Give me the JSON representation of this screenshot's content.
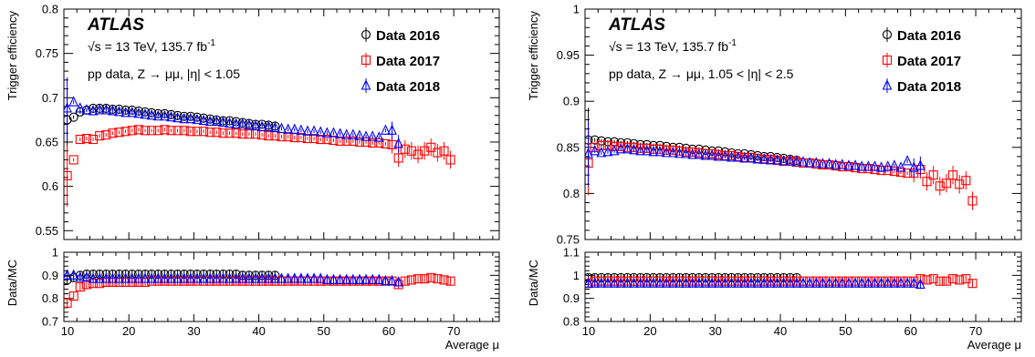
{
  "chart_data": [
    {
      "type": "scatter",
      "label_atlas": "ATLAS",
      "energy_prefix": "√s",
      "energy_text": " = 13 TeV, 135.7 fb",
      "energy_sup": "-1",
      "selection": "pp data, Z → μμ, |η| < 1.05",
      "ylabel": "Trigger efficiency",
      "ratio_ylabel": "Data/MC",
      "xlabel": "Average μ",
      "xlim": [
        10,
        77
      ],
      "ylim": [
        0.54,
        0.8
      ],
      "ratio_ylim": [
        0.7,
        1.0
      ],
      "x_ticks": [
        "10",
        "20",
        "30",
        "40",
        "50",
        "60",
        "70"
      ],
      "y_ticks": [
        "0.55",
        "0.6",
        "0.65",
        "0.7",
        "0.75",
        "0.8"
      ],
      "ratio_y_ticks": [
        "0.7",
        "0.8",
        "0.9",
        "1"
      ],
      "legend_position": "top-right",
      "series": [
        {
          "name": "Data 2016",
          "marker": "circle",
          "color": "#000000",
          "x": [
            10.5,
            11.5,
            12.5,
            13.5,
            14.5,
            15.5,
            16.5,
            17.5,
            18.5,
            19.5,
            20.5,
            21.5,
            22.5,
            23.5,
            24.5,
            25.5,
            26.5,
            27.5,
            28.5,
            29.5,
            30.5,
            31.5,
            32.5,
            33.5,
            34.5,
            35.5,
            36.5,
            37.5,
            38.5,
            39.5,
            40.5,
            41.5,
            42.5
          ],
          "y": [
            0.675,
            0.678,
            0.684,
            0.686,
            0.688,
            0.688,
            0.688,
            0.687,
            0.687,
            0.686,
            0.686,
            0.685,
            0.684,
            0.683,
            0.682,
            0.682,
            0.681,
            0.68,
            0.679,
            0.679,
            0.678,
            0.677,
            0.676,
            0.675,
            0.674,
            0.674,
            0.673,
            0.672,
            0.671,
            0.67,
            0.67,
            0.669,
            0.668
          ],
          "ratio": [
            0.88,
            0.89,
            0.9,
            0.905,
            0.905,
            0.905,
            0.905,
            0.905,
            0.905,
            0.905,
            0.905,
            0.905,
            0.905,
            0.905,
            0.905,
            0.905,
            0.905,
            0.905,
            0.905,
            0.905,
            0.905,
            0.905,
            0.905,
            0.905,
            0.905,
            0.905,
            0.905,
            0.9,
            0.9,
            0.9,
            0.9,
            0.9,
            0.9
          ]
        },
        {
          "name": "Data 2017",
          "marker": "square",
          "color": "#ff0000",
          "x": [
            10.5,
            11.5,
            12.5,
            13.5,
            14.5,
            15.5,
            16.5,
            17.5,
            18.5,
            19.5,
            20.5,
            21.5,
            22.5,
            23.5,
            24.5,
            25.5,
            26.5,
            27.5,
            28.5,
            29.5,
            30.5,
            31.5,
            32.5,
            33.5,
            34.5,
            35.5,
            36.5,
            37.5,
            38.5,
            39.5,
            40.5,
            41.5,
            42.5,
            43.5,
            44.5,
            45.5,
            46.5,
            47.5,
            48.5,
            49.5,
            50.5,
            51.5,
            52.5,
            53.5,
            54.5,
            55.5,
            56.5,
            57.5,
            58.5,
            59.5,
            60.5,
            61.5,
            62.5,
            63.5,
            64.5,
            65.5,
            66.5,
            67.5,
            68.5,
            69.5
          ],
          "y": [
            0.612,
            0.63,
            0.653,
            0.654,
            0.653,
            0.657,
            0.658,
            0.66,
            0.661,
            0.662,
            0.663,
            0.664,
            0.663,
            0.663,
            0.663,
            0.664,
            0.663,
            0.663,
            0.663,
            0.662,
            0.662,
            0.662,
            0.661,
            0.661,
            0.66,
            0.66,
            0.66,
            0.659,
            0.659,
            0.659,
            0.658,
            0.657,
            0.657,
            0.656,
            0.656,
            0.655,
            0.655,
            0.654,
            0.654,
            0.653,
            0.653,
            0.652,
            0.651,
            0.651,
            0.651,
            0.65,
            0.65,
            0.649,
            0.649,
            0.648,
            0.647,
            0.632,
            0.642,
            0.64,
            0.636,
            0.64,
            0.644,
            0.638,
            0.64,
            0.63
          ],
          "ratio": [
            0.78,
            0.81,
            0.85,
            0.86,
            0.865,
            0.865,
            0.87,
            0.87,
            0.87,
            0.87,
            0.87,
            0.87,
            0.87,
            0.875,
            0.875,
            0.875,
            0.875,
            0.875,
            0.875,
            0.875,
            0.875,
            0.875,
            0.875,
            0.875,
            0.875,
            0.875,
            0.875,
            0.875,
            0.875,
            0.875,
            0.875,
            0.875,
            0.875,
            0.875,
            0.875,
            0.875,
            0.875,
            0.875,
            0.875,
            0.875,
            0.875,
            0.875,
            0.875,
            0.875,
            0.875,
            0.875,
            0.875,
            0.875,
            0.875,
            0.875,
            0.875,
            0.86,
            0.875,
            0.88,
            0.885,
            0.885,
            0.89,
            0.885,
            0.88,
            0.875
          ]
        },
        {
          "name": "Data 2018",
          "marker": "triangle",
          "color": "#0000ff",
          "x": [
            10.5,
            11.5,
            12.5,
            13.5,
            14.5,
            15.5,
            16.5,
            17.5,
            18.5,
            19.5,
            20.5,
            21.5,
            22.5,
            23.5,
            24.5,
            25.5,
            26.5,
            27.5,
            28.5,
            29.5,
            30.5,
            31.5,
            32.5,
            33.5,
            34.5,
            35.5,
            36.5,
            37.5,
            38.5,
            39.5,
            40.5,
            41.5,
            42.5,
            43.5,
            44.5,
            45.5,
            46.5,
            47.5,
            48.5,
            49.5,
            50.5,
            51.5,
            52.5,
            53.5,
            54.5,
            55.5,
            56.5,
            57.5,
            58.5,
            59.5,
            60.5,
            61.5
          ],
          "y": [
            0.688,
            0.695,
            0.688,
            0.686,
            0.685,
            0.686,
            0.686,
            0.685,
            0.684,
            0.683,
            0.683,
            0.682,
            0.681,
            0.68,
            0.679,
            0.679,
            0.678,
            0.677,
            0.676,
            0.676,
            0.675,
            0.674,
            0.673,
            0.673,
            0.672,
            0.671,
            0.67,
            0.67,
            0.669,
            0.668,
            0.667,
            0.667,
            0.666,
            0.665,
            0.664,
            0.664,
            0.663,
            0.662,
            0.662,
            0.661,
            0.66,
            0.66,
            0.659,
            0.658,
            0.658,
            0.657,
            0.656,
            0.656,
            0.655,
            0.663,
            0.663,
            0.648
          ],
          "ratio": [
            0.9,
            0.9,
            0.89,
            0.89,
            0.885,
            0.885,
            0.885,
            0.885,
            0.885,
            0.885,
            0.885,
            0.885,
            0.885,
            0.885,
            0.885,
            0.885,
            0.885,
            0.885,
            0.885,
            0.885,
            0.885,
            0.885,
            0.885,
            0.885,
            0.885,
            0.885,
            0.885,
            0.885,
            0.885,
            0.885,
            0.885,
            0.885,
            0.885,
            0.885,
            0.885,
            0.885,
            0.885,
            0.885,
            0.885,
            0.885,
            0.88,
            0.88,
            0.88,
            0.88,
            0.88,
            0.88,
            0.88,
            0.88,
            0.88,
            0.875,
            0.875,
            0.87
          ]
        }
      ]
    },
    {
      "type": "scatter",
      "label_atlas": "ATLAS",
      "energy_prefix": "√s",
      "energy_text": " = 13 TeV, 135.7 fb",
      "energy_sup": "-1",
      "selection": "pp data, Z → μμ, 1.05 < |η| < 2.5",
      "ylabel": "Trigger efficiency",
      "ratio_ylabel": "Data/MC",
      "xlabel": "Average μ",
      "xlim": [
        10,
        77
      ],
      "ylim": [
        0.75,
        1.0
      ],
      "ratio_ylim": [
        0.8,
        1.1
      ],
      "x_ticks": [
        "10",
        "20",
        "30",
        "40",
        "50",
        "60",
        "70"
      ],
      "y_ticks": [
        "0.75",
        "0.8",
        "0.85",
        "0.9",
        "0.95",
        "1"
      ],
      "ratio_y_ticks": [
        "0.8",
        "0.9",
        "1",
        "1.1"
      ],
      "legend_position": "top-right",
      "series": [
        {
          "name": "Data 2016",
          "marker": "circle",
          "color": "#000000",
          "x": [
            10.5,
            11.5,
            12.5,
            13.5,
            14.5,
            15.5,
            16.5,
            17.5,
            18.5,
            19.5,
            20.5,
            21.5,
            22.5,
            23.5,
            24.5,
            25.5,
            26.5,
            27.5,
            28.5,
            29.5,
            30.5,
            31.5,
            32.5,
            33.5,
            34.5,
            35.5,
            36.5,
            37.5,
            38.5,
            39.5,
            40.5,
            41.5,
            42.5
          ],
          "y": [
            0.858,
            0.858,
            0.857,
            0.856,
            0.856,
            0.855,
            0.855,
            0.854,
            0.853,
            0.853,
            0.852,
            0.852,
            0.851,
            0.85,
            0.85,
            0.849,
            0.848,
            0.848,
            0.847,
            0.846,
            0.846,
            0.845,
            0.844,
            0.843,
            0.843,
            0.842,
            0.841,
            0.84,
            0.84,
            0.839,
            0.838,
            0.837,
            0.836
          ],
          "ratio": [
            0.99,
            0.99,
            0.99,
            0.99,
            0.99,
            0.99,
            0.99,
            0.99,
            0.99,
            0.99,
            0.99,
            0.99,
            0.99,
            0.99,
            0.99,
            0.99,
            0.99,
            0.99,
            0.99,
            0.99,
            0.99,
            0.99,
            0.99,
            0.99,
            0.99,
            0.99,
            0.99,
            0.99,
            0.99,
            0.99,
            0.99,
            0.99,
            0.99
          ]
        },
        {
          "name": "Data 2017",
          "marker": "square",
          "color": "#ff0000",
          "x": [
            10.5,
            11.5,
            12.5,
            13.5,
            14.5,
            15.5,
            16.5,
            17.5,
            18.5,
            19.5,
            20.5,
            21.5,
            22.5,
            23.5,
            24.5,
            25.5,
            26.5,
            27.5,
            28.5,
            29.5,
            30.5,
            31.5,
            32.5,
            33.5,
            34.5,
            35.5,
            36.5,
            37.5,
            38.5,
            39.5,
            40.5,
            41.5,
            42.5,
            43.5,
            44.5,
            45.5,
            46.5,
            47.5,
            48.5,
            49.5,
            50.5,
            51.5,
            52.5,
            53.5,
            54.5,
            55.5,
            56.5,
            57.5,
            58.5,
            59.5,
            60.5,
            61.5,
            62.5,
            63.5,
            64.5,
            65.5,
            66.5,
            67.5,
            68.5,
            69.5
          ],
          "y": [
            0.833,
            0.85,
            0.852,
            0.852,
            0.851,
            0.851,
            0.85,
            0.85,
            0.849,
            0.849,
            0.848,
            0.848,
            0.847,
            0.847,
            0.846,
            0.845,
            0.845,
            0.844,
            0.843,
            0.843,
            0.842,
            0.841,
            0.841,
            0.84,
            0.839,
            0.839,
            0.838,
            0.837,
            0.837,
            0.836,
            0.835,
            0.835,
            0.834,
            0.833,
            0.833,
            0.832,
            0.831,
            0.831,
            0.83,
            0.829,
            0.829,
            0.828,
            0.827,
            0.827,
            0.826,
            0.825,
            0.825,
            0.824,
            0.823,
            0.822,
            0.822,
            0.826,
            0.813,
            0.82,
            0.808,
            0.811,
            0.82,
            0.81,
            0.814,
            0.792
          ],
          "ratio": [
            0.965,
            0.975,
            0.975,
            0.975,
            0.975,
            0.975,
            0.975,
            0.975,
            0.975,
            0.975,
            0.975,
            0.975,
            0.975,
            0.975,
            0.975,
            0.975,
            0.975,
            0.975,
            0.975,
            0.975,
            0.975,
            0.975,
            0.975,
            0.975,
            0.975,
            0.975,
            0.975,
            0.975,
            0.975,
            0.975,
            0.975,
            0.975,
            0.975,
            0.975,
            0.975,
            0.975,
            0.975,
            0.975,
            0.975,
            0.975,
            0.975,
            0.975,
            0.975,
            0.975,
            0.975,
            0.975,
            0.975,
            0.975,
            0.975,
            0.975,
            0.975,
            0.985,
            0.98,
            0.985,
            0.975,
            0.975,
            0.985,
            0.98,
            0.985,
            0.965
          ]
        },
        {
          "name": "Data 2018",
          "marker": "triangle",
          "color": "#0000ff",
          "x": [
            10.5,
            11.5,
            12.5,
            13.5,
            14.5,
            15.5,
            16.5,
            17.5,
            18.5,
            19.5,
            20.5,
            21.5,
            22.5,
            23.5,
            24.5,
            25.5,
            26.5,
            27.5,
            28.5,
            29.5,
            30.5,
            31.5,
            32.5,
            33.5,
            34.5,
            35.5,
            36.5,
            37.5,
            38.5,
            39.5,
            40.5,
            41.5,
            42.5,
            43.5,
            44.5,
            45.5,
            46.5,
            47.5,
            48.5,
            49.5,
            50.5,
            51.5,
            52.5,
            53.5,
            54.5,
            55.5,
            56.5,
            57.5,
            58.5,
            59.5,
            60.5,
            61.5
          ],
          "y": [
            0.843,
            0.846,
            0.844,
            0.845,
            0.846,
            0.848,
            0.848,
            0.847,
            0.846,
            0.846,
            0.845,
            0.845,
            0.844,
            0.844,
            0.843,
            0.843,
            0.842,
            0.842,
            0.841,
            0.841,
            0.84,
            0.84,
            0.839,
            0.839,
            0.838,
            0.838,
            0.837,
            0.837,
            0.836,
            0.836,
            0.835,
            0.835,
            0.834,
            0.834,
            0.833,
            0.833,
            0.832,
            0.832,
            0.831,
            0.831,
            0.83,
            0.83,
            0.829,
            0.829,
            0.829,
            0.828,
            0.829,
            0.83,
            0.828,
            0.835,
            0.828,
            0.83
          ],
          "ratio": [
            0.965,
            0.965,
            0.965,
            0.965,
            0.965,
            0.965,
            0.965,
            0.965,
            0.965,
            0.965,
            0.965,
            0.965,
            0.965,
            0.965,
            0.965,
            0.965,
            0.965,
            0.965,
            0.965,
            0.965,
            0.965,
            0.965,
            0.965,
            0.965,
            0.965,
            0.965,
            0.965,
            0.965,
            0.965,
            0.965,
            0.965,
            0.965,
            0.965,
            0.965,
            0.965,
            0.965,
            0.965,
            0.965,
            0.965,
            0.965,
            0.965,
            0.965,
            0.965,
            0.965,
            0.965,
            0.965,
            0.965,
            0.965,
            0.965,
            0.965,
            0.965,
            0.96
          ]
        }
      ]
    }
  ]
}
